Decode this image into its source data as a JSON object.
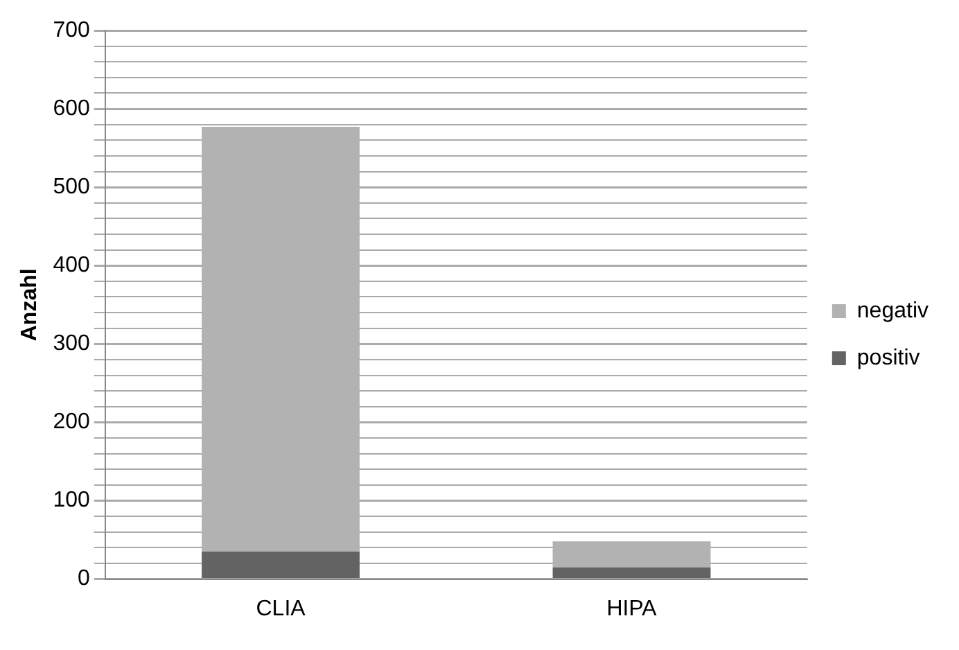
{
  "chart_data": {
    "type": "bar",
    "stacked": true,
    "ylabel": "Anzahl",
    "categories": [
      "CLIA",
      "HIPA"
    ],
    "series": [
      {
        "name": "positiv",
        "color": "#636363",
        "values": [
          35,
          15
        ]
      },
      {
        "name": "negativ",
        "color": "#b2b2b2",
        "values": [
          542,
          33
        ]
      }
    ],
    "ylim": [
      0,
      700
    ],
    "yticks": [
      0,
      {
        "value": 20,
        "label": null
      },
      {
        "value": 40,
        "label": null
      },
      {
        "value": 60,
        "label": null
      },
      {
        "value": 80,
        "label": null
      },
      100,
      {
        "value": 120,
        "label": null
      },
      {
        "value": 140,
        "label": null
      },
      {
        "value": 160,
        "label": null
      },
      {
        "value": 180,
        "label": null
      },
      200,
      {
        "value": 220,
        "label": null
      },
      {
        "value": 240,
        "label": null
      },
      {
        "value": 260,
        "label": null
      },
      {
        "value": 280,
        "label": null
      },
      300,
      {
        "value": 320,
        "label": null
      },
      {
        "value": 340,
        "label": null
      },
      {
        "value": 360,
        "label": null
      },
      {
        "value": 380,
        "label": null
      },
      400,
      {
        "value": 420,
        "label": null
      },
      {
        "value": 440,
        "label": null
      },
      {
        "value": 460,
        "label": null
      },
      {
        "value": 480,
        "label": null
      },
      500,
      {
        "value": 520,
        "label": null
      },
      {
        "value": 540,
        "label": null
      },
      {
        "value": 560,
        "label": null
      },
      {
        "value": 580,
        "label": null
      },
      600,
      {
        "value": 620,
        "label": null
      },
      {
        "value": 640,
        "label": null
      },
      {
        "value": 660,
        "label": null
      },
      {
        "value": 680,
        "label": null
      },
      700
    ],
    "grid": "y",
    "legend": "right"
  }
}
